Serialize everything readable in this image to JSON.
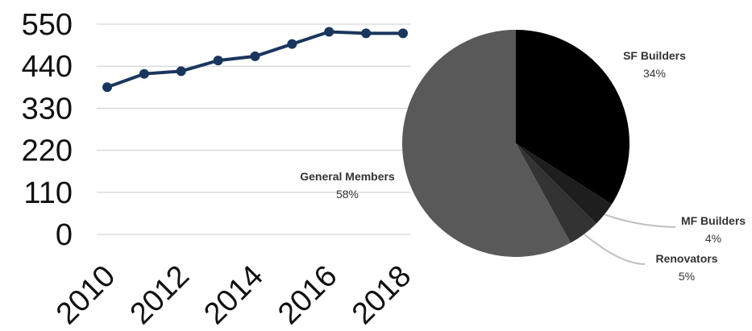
{
  "chart_data": [
    {
      "type": "line",
      "title": "",
      "xlabel": "",
      "ylabel": "",
      "x": [
        2010,
        2011,
        2012,
        2013,
        2014,
        2015,
        2016,
        2017,
        2018
      ],
      "series": [
        {
          "values": [
            385,
            420,
            427,
            455,
            466,
            498,
            530,
            526,
            526
          ],
          "color": "#1b365d"
        }
      ],
      "ylim": [
        0,
        550
      ],
      "yticks": [
        "0",
        "110",
        "220",
        "330",
        "440",
        "550"
      ],
      "xticks": [
        "2010",
        "2012",
        "2014",
        "2016",
        "2018"
      ],
      "grid": true,
      "legend": "none"
    },
    {
      "type": "pie",
      "slices": [
        {
          "label": "SF Builders",
          "pct_label": "34%",
          "value": 34,
          "color": "#000000"
        },
        {
          "label": "MF Builders",
          "pct_label": "4%",
          "value": 3.5,
          "color": "#1e1e1e"
        },
        {
          "label": "Renovators",
          "pct_label": "5%",
          "value": 4.5,
          "color": "#333333"
        },
        {
          "label": "General Members",
          "pct_label": "58%",
          "value": 58,
          "color": "#595959"
        }
      ],
      "leader_line_color": "#bfbfbf"
    }
  ]
}
